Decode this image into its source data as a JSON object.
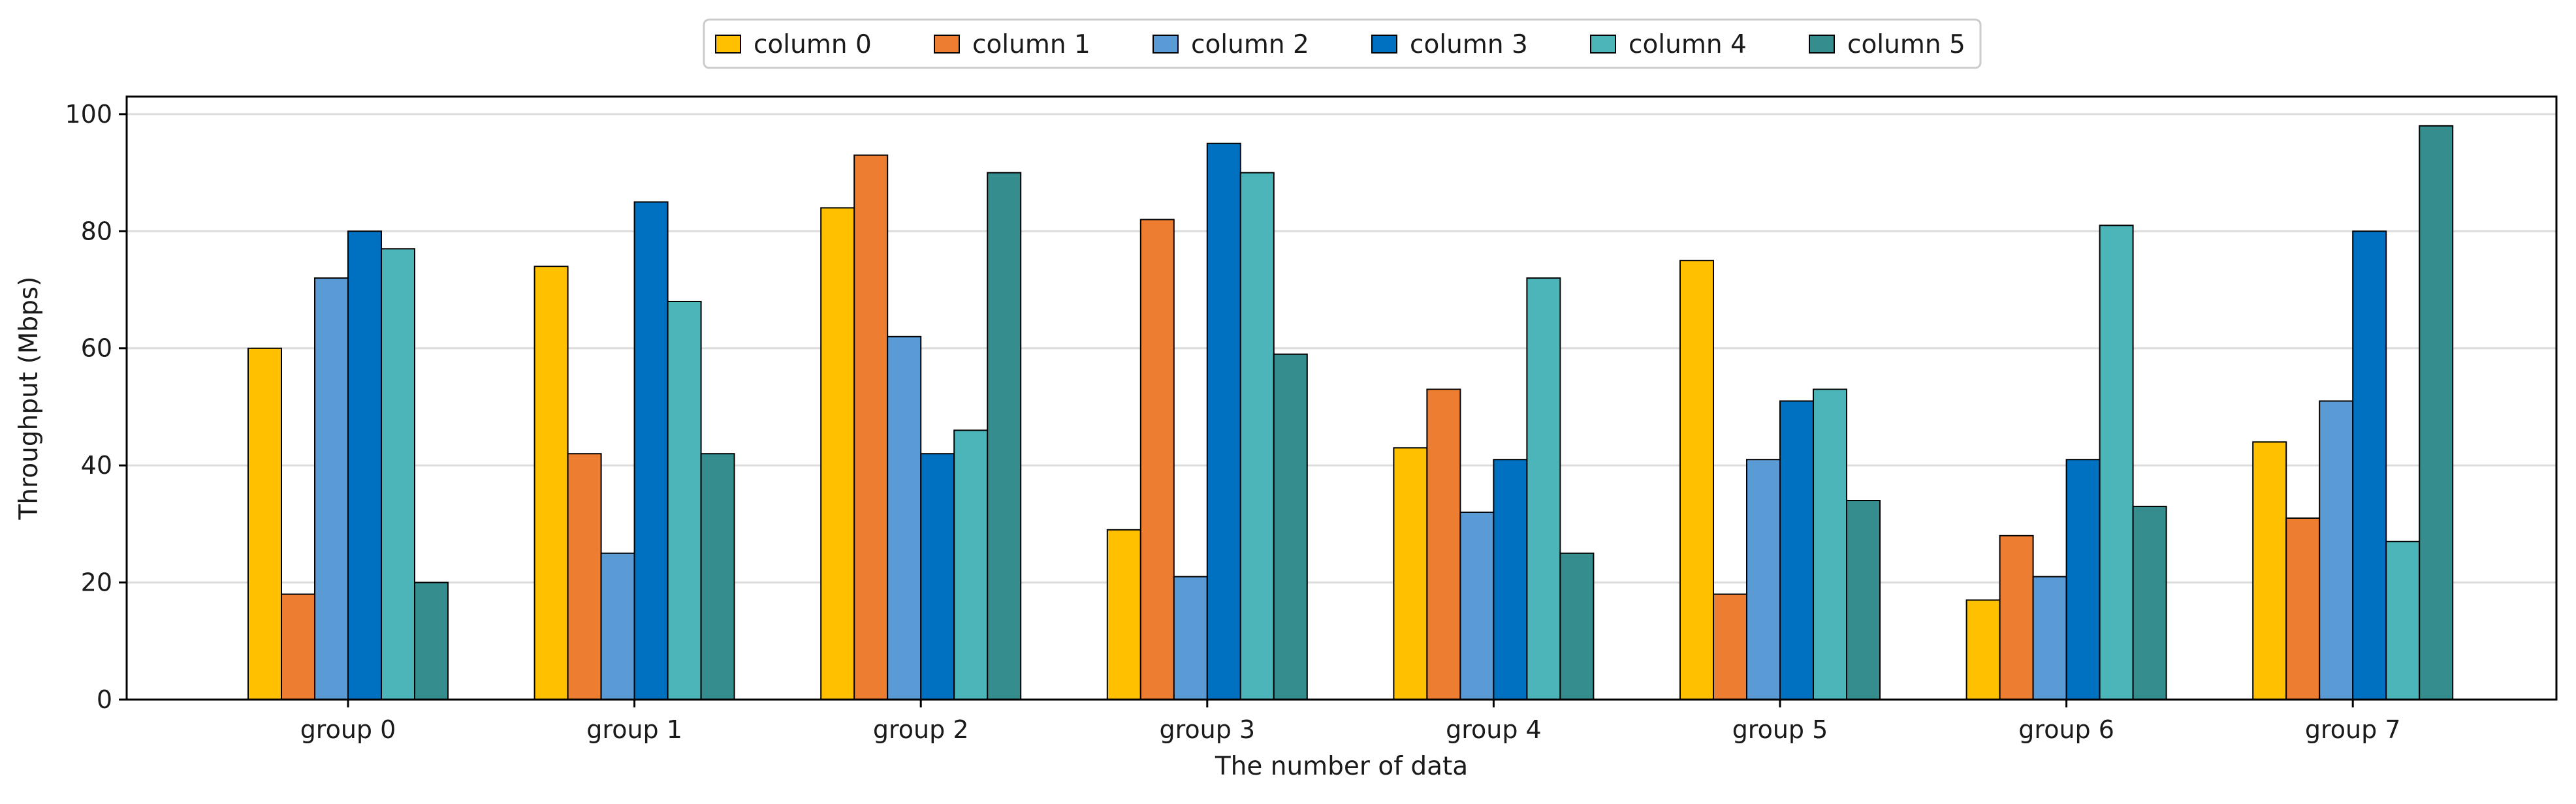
{
  "chart_data": {
    "type": "bar",
    "title": "",
    "xlabel": "The number of data",
    "ylabel": "Throughput (Mbps)",
    "ylim": [
      0,
      103
    ],
    "yticks": [
      0,
      20,
      40,
      60,
      80,
      100
    ],
    "grid": "horizontal",
    "legend_position": "top-center",
    "categories": [
      "group 0",
      "group 1",
      "group 2",
      "group 3",
      "group 4",
      "group 5",
      "group 6",
      "group 7"
    ],
    "series": [
      {
        "name": "column 0",
        "color": "#FFC000",
        "values": [
          60,
          74,
          84,
          29,
          43,
          75,
          17,
          44
        ]
      },
      {
        "name": "column 1",
        "color": "#ED7D31",
        "values": [
          18,
          42,
          93,
          82,
          53,
          18,
          28,
          31
        ]
      },
      {
        "name": "column 2",
        "color": "#5B9BD5",
        "values": [
          72,
          25,
          62,
          21,
          32,
          41,
          21,
          51
        ]
      },
      {
        "name": "column 3",
        "color": "#0070C0",
        "values": [
          80,
          85,
          42,
          95,
          41,
          51,
          41,
          80
        ]
      },
      {
        "name": "column 4",
        "color": "#4BB5B9",
        "values": [
          77,
          68,
          46,
          90,
          72,
          53,
          81,
          27
        ]
      },
      {
        "name": "column 5",
        "color": "#358D8D",
        "values": [
          20,
          42,
          90,
          59,
          25,
          34,
          33,
          98
        ]
      }
    ]
  }
}
